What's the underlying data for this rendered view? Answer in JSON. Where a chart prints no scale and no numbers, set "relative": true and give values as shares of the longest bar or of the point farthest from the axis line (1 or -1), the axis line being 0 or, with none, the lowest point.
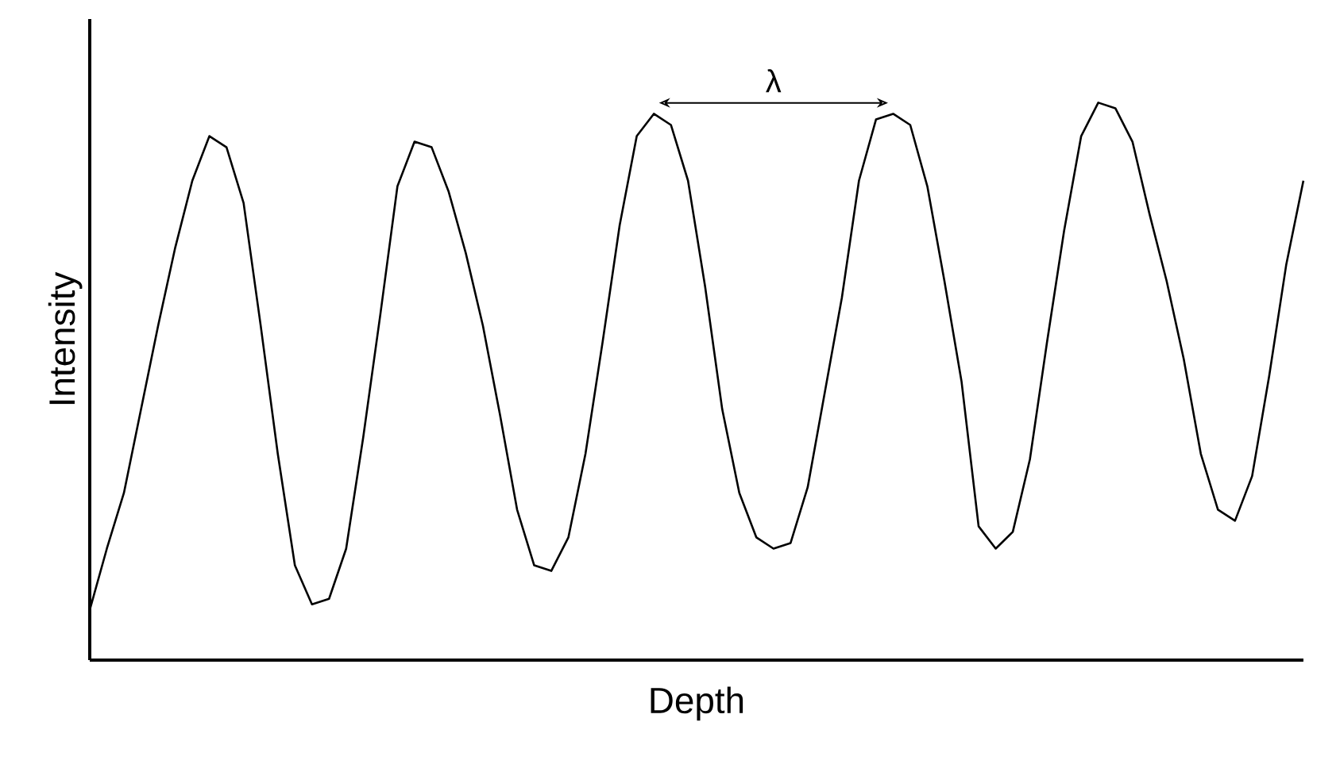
{
  "chart_data": {
    "type": "line",
    "relative": true,
    "xlabel": "Depth",
    "ylabel": "Intensity",
    "annotations": [
      "λ"
    ],
    "categories": [
      null,
      null,
      null,
      null,
      null,
      null,
      null,
      null,
      null,
      null,
      null,
      null,
      null,
      null,
      null,
      null,
      null,
      null,
      null,
      null,
      null,
      null,
      null,
      null,
      null,
      null,
      null,
      null,
      null,
      null,
      null,
      null,
      null,
      null,
      null,
      null,
      null,
      null,
      null,
      null,
      null,
      null,
      null,
      null,
      null,
      null,
      null,
      null,
      null,
      null,
      null,
      null,
      null,
      null,
      null,
      null,
      null,
      null,
      null,
      null,
      null,
      null,
      null,
      null,
      null,
      null,
      null,
      null,
      null,
      null,
      null,
      null
    ],
    "series": [
      {
        "color": "#000000",
        "values": [
          0.09,
          0.2,
          0.3,
          0.45,
          0.6,
          0.74,
          0.86,
          0.94,
          0.92,
          0.82,
          0.6,
          0.37,
          0.17,
          0.1,
          0.11,
          0.2,
          0.4,
          0.62,
          0.85,
          0.93,
          0.92,
          0.84,
          0.73,
          0.6,
          0.44,
          0.27,
          0.17,
          0.16,
          0.22,
          0.37,
          0.57,
          0.78,
          0.94,
          0.98,
          0.96,
          0.86,
          0.67,
          0.45,
          0.3,
          0.22,
          0.2,
          0.21,
          0.31,
          0.48,
          0.65,
          0.86,
          0.97,
          0.98,
          0.96,
          0.85,
          0.68,
          0.5,
          0.24,
          0.2,
          0.23,
          0.36,
          0.57,
          0.77,
          0.94,
          1.0,
          0.99,
          0.93,
          0.8,
          0.68,
          0.54,
          0.37,
          0.27,
          0.25,
          0.33,
          0.51,
          0.71,
          0.86
        ]
      }
    ]
  }
}
